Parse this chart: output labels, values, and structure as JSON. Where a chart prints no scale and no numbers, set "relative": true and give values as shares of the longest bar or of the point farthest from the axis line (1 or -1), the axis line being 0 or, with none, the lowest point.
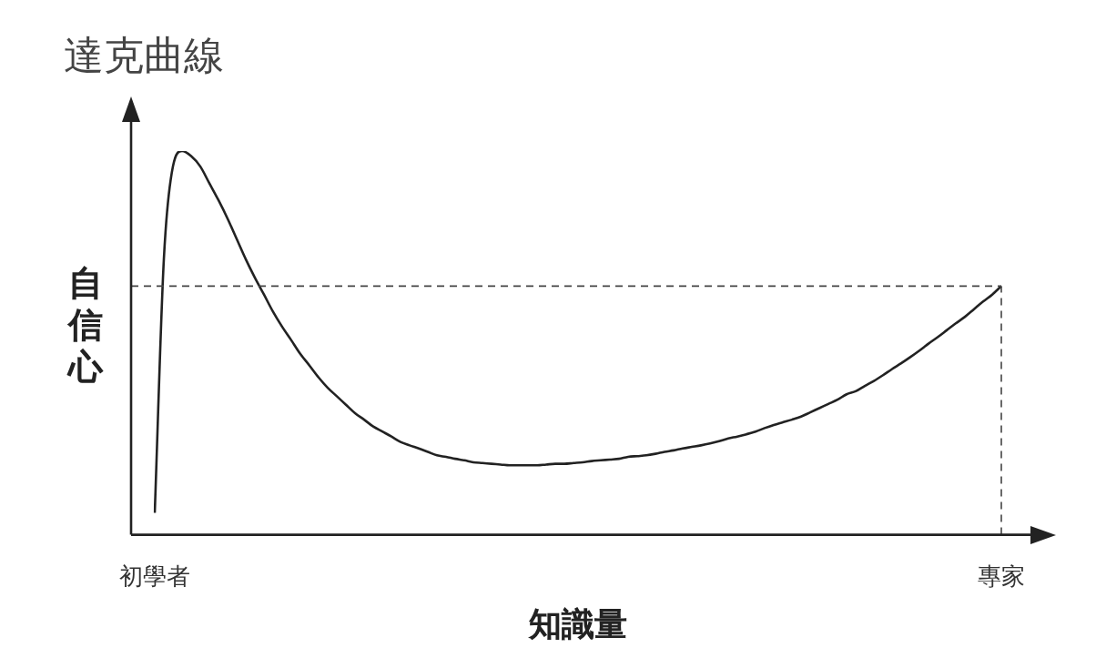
{
  "chart_data": {
    "type": "line",
    "title": "達克曲線",
    "xlabel": "知識量",
    "ylabel": "自信心",
    "relative": true,
    "marker": "none",
    "color": "#222222",
    "categories": [
      "初學者",
      null,
      null,
      null,
      null,
      null,
      null,
      null,
      null,
      null,
      null,
      null,
      null,
      null,
      null,
      null,
      null,
      null,
      null,
      null,
      null,
      null,
      null,
      null,
      null,
      null,
      null,
      null,
      null,
      null,
      null,
      null,
      null,
      null,
      null,
      null,
      null,
      null,
      null,
      null,
      null,
      null,
      null,
      null,
      null,
      null,
      null,
      null,
      null,
      null,
      null,
      null,
      null,
      null,
      null,
      null,
      null,
      null,
      null,
      null,
      null,
      null,
      null,
      null,
      null,
      null,
      null,
      null,
      null,
      null,
      null,
      null,
      null,
      null,
      null,
      null,
      null,
      null,
      null,
      null,
      null,
      null,
      null,
      null,
      null,
      null,
      null,
      null,
      null,
      null,
      null,
      null,
      null,
      "專家"
    ],
    "values": [
      0.057,
      0.718,
      0.96,
      1,
      0.987,
      0.96,
      0.916,
      0.872,
      0.824,
      0.771,
      0.718,
      0.67,
      0.626,
      0.581,
      0.542,
      0.507,
      0.471,
      0.441,
      0.41,
      0.383,
      0.361,
      0.339,
      0.317,
      0.3,
      0.282,
      0.269,
      0.256,
      0.242,
      0.233,
      0.225,
      0.216,
      0.207,
      0.203,
      0.198,
      0.194,
      0.189,
      0.187,
      0.185,
      0.183,
      0.181,
      0.181,
      0.181,
      0.181,
      0.183,
      0.185,
      0.185,
      0.187,
      0.189,
      0.192,
      0.194,
      0.196,
      0.198,
      0.203,
      0.205,
      0.207,
      0.211,
      0.216,
      0.22,
      0.225,
      0.229,
      0.233,
      0.238,
      0.244,
      0.251,
      0.256,
      0.262,
      0.269,
      0.278,
      0.286,
      0.293,
      0.3,
      0.308,
      0.319,
      0.33,
      0.341,
      0.352,
      0.366,
      0.374,
      0.388,
      0.401,
      0.416,
      0.432,
      0.447,
      0.463,
      0.48,
      0.498,
      0.515,
      0.533,
      0.551,
      0.568,
      0.588,
      0.608,
      0.626,
      0.648
    ],
    "ref_lines": [
      {
        "axis": "y",
        "value": 0.648,
        "color": "#444444",
        "line_style": "dashed"
      },
      {
        "axis": "x",
        "value": "專家",
        "color": "#444444",
        "line_style": "dashed"
      }
    ]
  }
}
